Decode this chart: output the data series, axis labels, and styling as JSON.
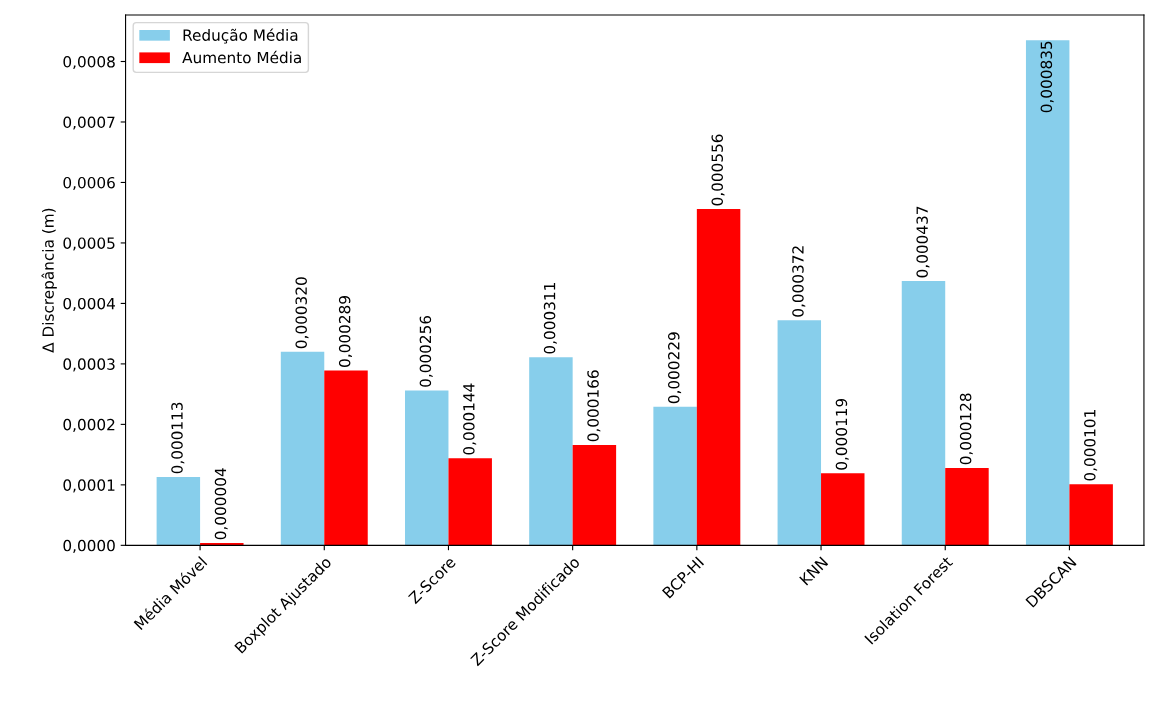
{
  "chart_data": {
    "type": "bar",
    "ylabel": "Δ Discrepância (m)",
    "categories": [
      "Média Móvel",
      "Boxplot Ajustado",
      "Z-Score",
      "Z-Score Modificado",
      "BCP-HI",
      "KNN",
      "Isolation Forest",
      "DBSCAN"
    ],
    "series": [
      {
        "name": "Redução Média",
        "color": "#87ceeb",
        "values": [
          0.000113,
          0.00032,
          0.000256,
          0.000311,
          0.000229,
          0.000372,
          0.000437,
          0.000835
        ],
        "value_labels": [
          "0,000113",
          "0,000320",
          "0,000256",
          "0,000311",
          "0,000229",
          "0,000372",
          "0,000437",
          "0,000835"
        ]
      },
      {
        "name": "Aumento Média",
        "color": "#ff0000",
        "values": [
          4e-06,
          0.000289,
          0.000144,
          0.000166,
          0.000556,
          0.000119,
          0.000128,
          0.000101
        ],
        "value_labels": [
          "0,000004",
          "0,000289",
          "0,000144",
          "0,000166",
          "0,000556",
          "0,000119",
          "0,000128",
          "0,000101"
        ]
      }
    ],
    "ylim": [
      0,
      0.000877
    ],
    "yticks": [
      {
        "value": 0,
        "label": "0,0000"
      },
      {
        "value": 0.0001,
        "label": "0,0001"
      },
      {
        "value": 0.0002,
        "label": "0,0002"
      },
      {
        "value": 0.0003,
        "label": "0,0003"
      },
      {
        "value": 0.0004,
        "label": "0,0004"
      },
      {
        "value": 0.0005,
        "label": "0,0005"
      },
      {
        "value": 0.0006,
        "label": "0,0006"
      },
      {
        "value": 0.0007,
        "label": "0,0007"
      },
      {
        "value": 0.0008,
        "label": "0,0008"
      }
    ],
    "legend": "top left",
    "grid": false
  }
}
